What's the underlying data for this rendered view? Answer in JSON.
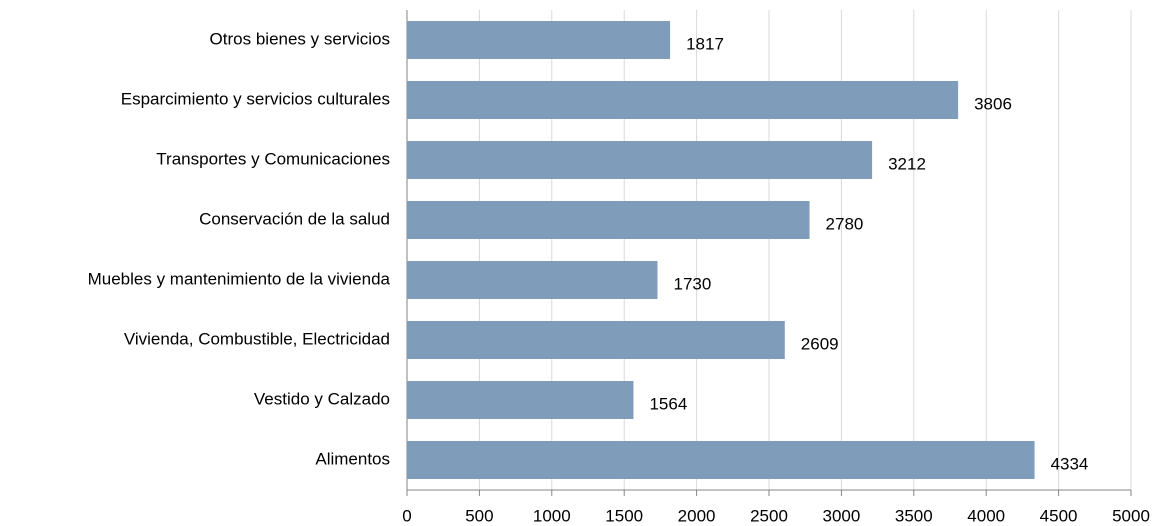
{
  "chart_data": {
    "type": "bar",
    "orientation": "horizontal",
    "categories": [
      "Otros bienes y servicios",
      "Esparcimiento y servicios culturales",
      "Transportes y Comunicaciones",
      "Conservación de la salud",
      "Muebles y mantenimiento de la vivienda",
      "Vivienda, Combustible, Electricidad",
      "Vestido y Calzado",
      "Alimentos"
    ],
    "values": [
      1817,
      3806,
      3212,
      2780,
      1730,
      2609,
      1564,
      4334
    ],
    "color": "#7f9cbb",
    "xlim": [
      0,
      5000
    ],
    "xticks": [
      0,
      500,
      1000,
      1500,
      2000,
      2500,
      3000,
      3500,
      4000,
      4500,
      5000
    ],
    "grid": true
  }
}
